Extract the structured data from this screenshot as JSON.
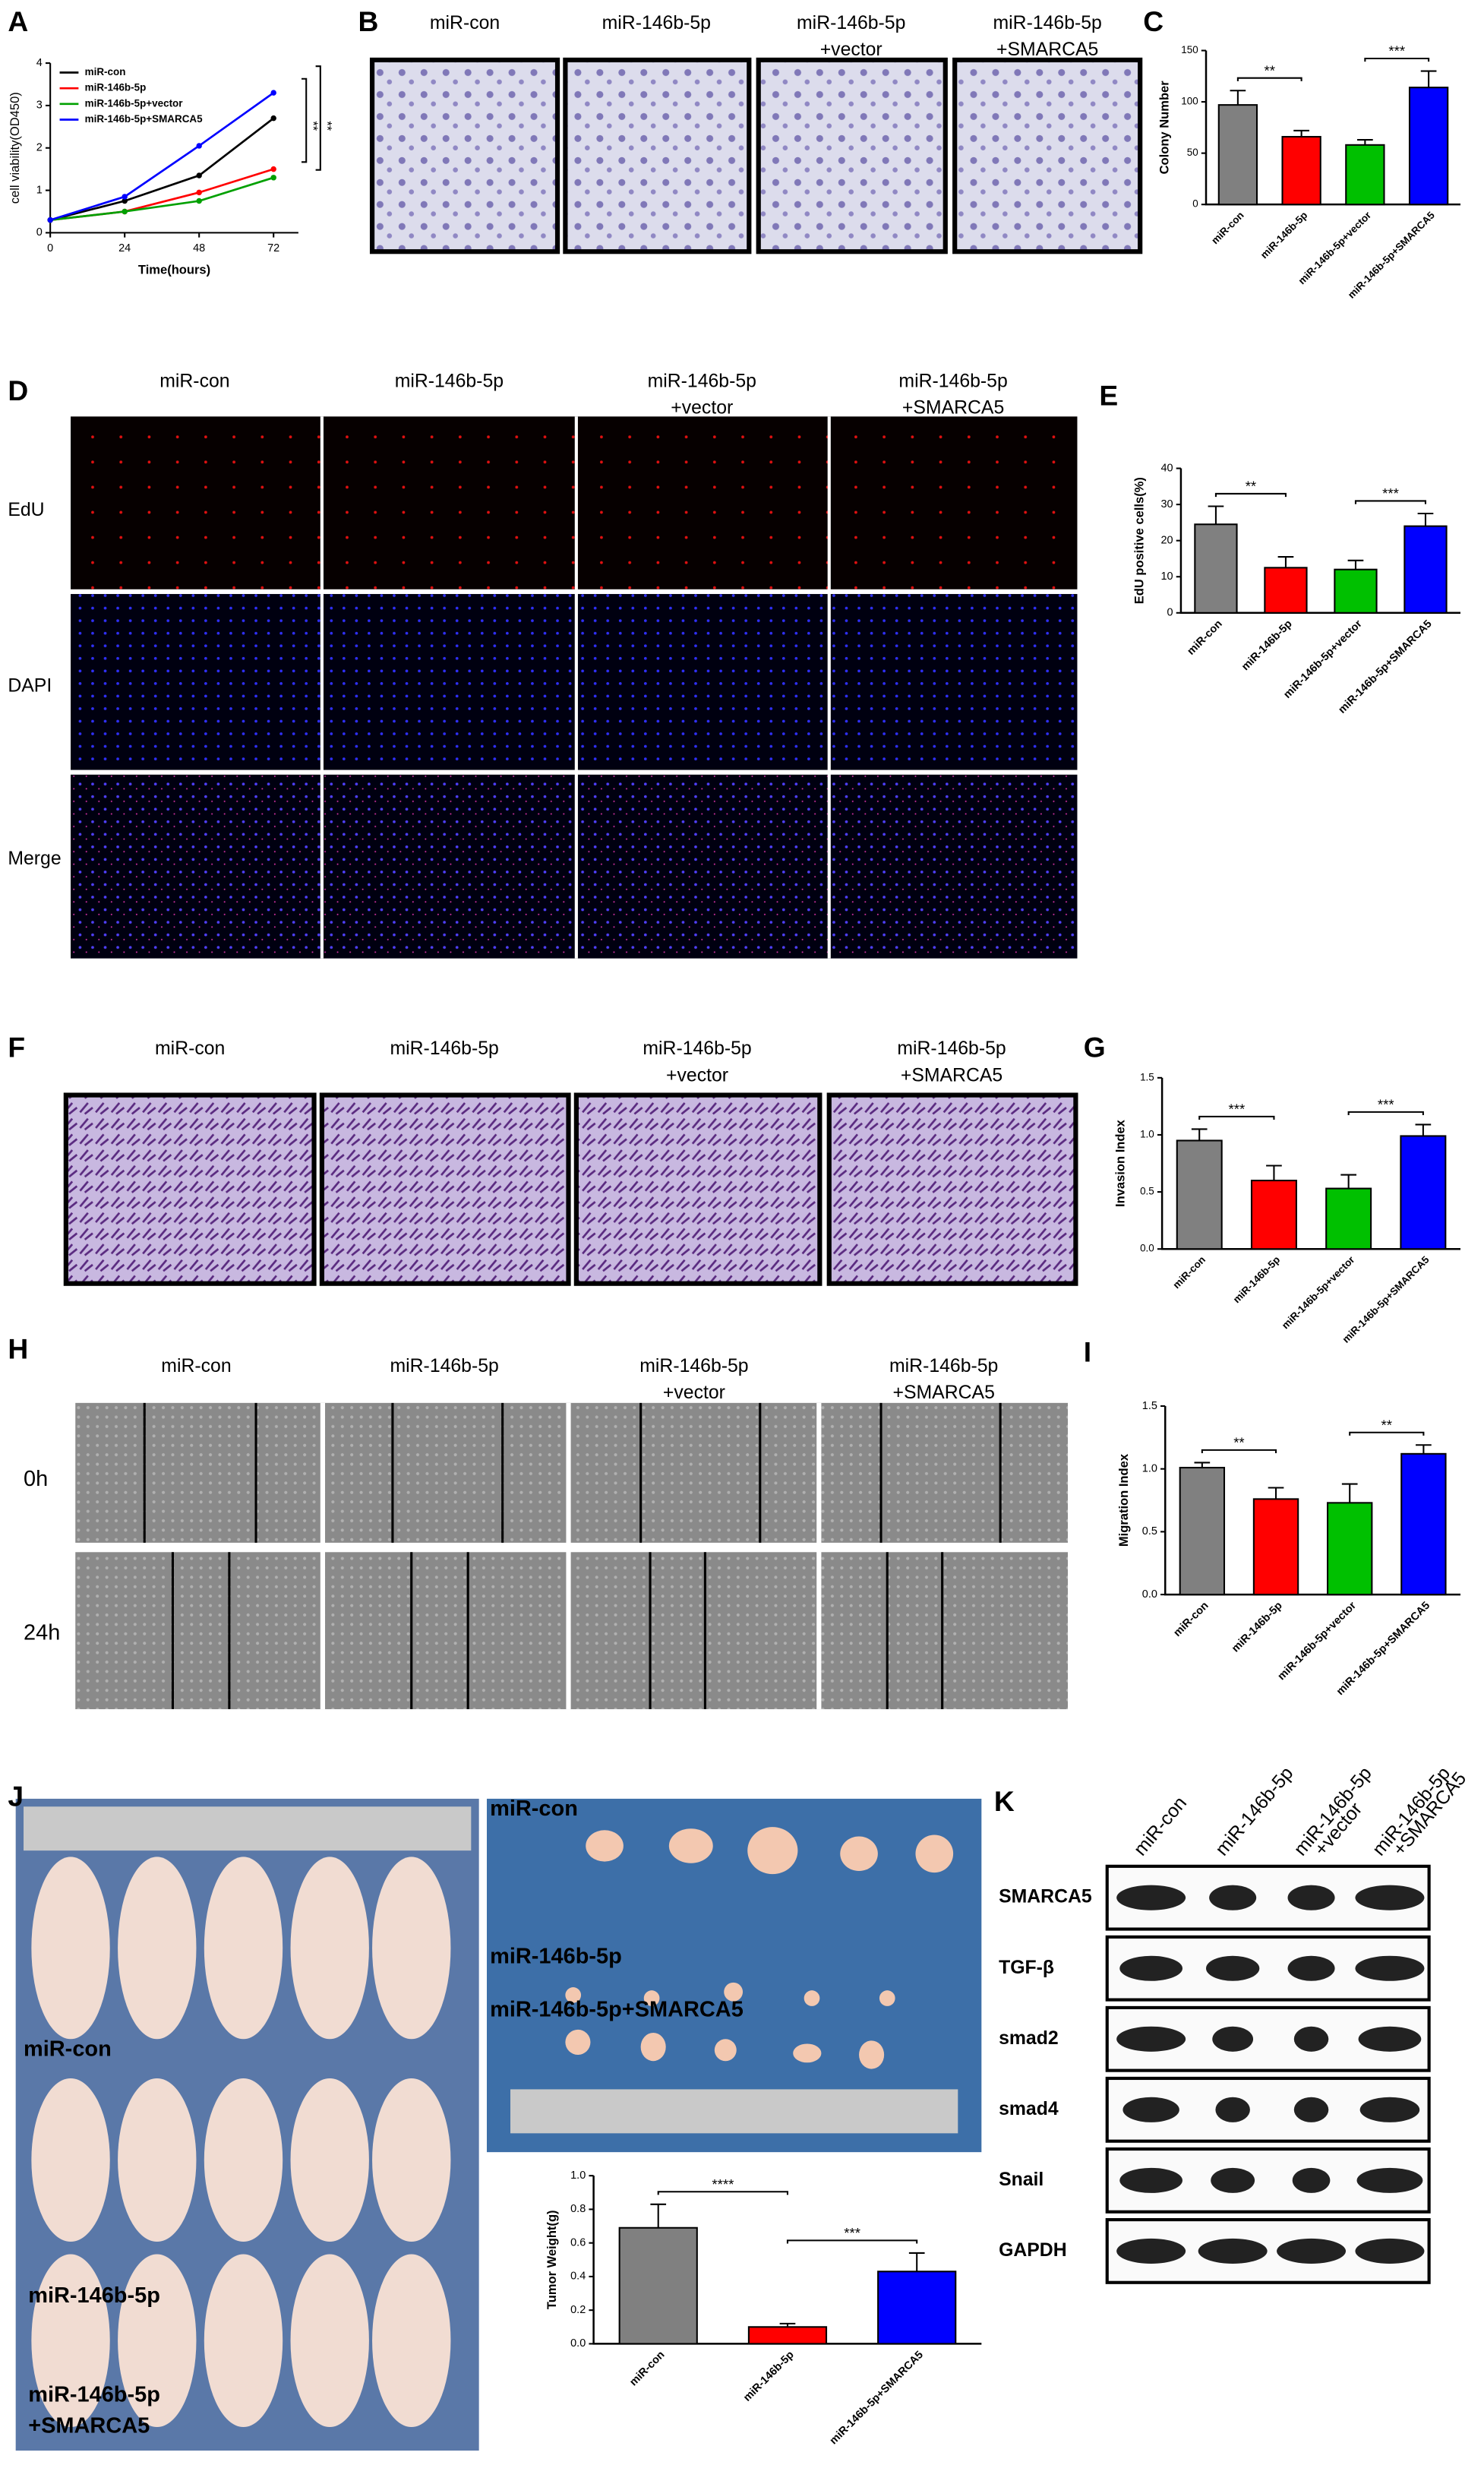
{
  "panel_labels": [
    "A",
    "B",
    "C",
    "D",
    "E",
    "F",
    "G",
    "H",
    "I",
    "J",
    "K"
  ],
  "photo_panels": {
    "B": {
      "columns": [
        [
          "miR-con"
        ],
        [
          "miR-146b-5p"
        ],
        [
          "miR-146b-5p",
          "+vector"
        ],
        [
          "miR-146b-5p",
          "+SMARCA5"
        ]
      ]
    },
    "D": {
      "columns": [
        [
          "miR-con"
        ],
        [
          "miR-146b-5p"
        ],
        [
          "miR-146b-5p",
          "+vector"
        ],
        [
          "miR-146b-5p",
          "+SMARCA5"
        ]
      ],
      "rows": [
        "EdU",
        "DAPI",
        "Merge"
      ]
    },
    "F": {
      "columns": [
        [
          "miR-con"
        ],
        [
          "miR-146b-5p"
        ],
        [
          "miR-146b-5p",
          "+vector"
        ],
        [
          "miR-146b-5p",
          "+SMARCA5"
        ]
      ]
    },
    "H": {
      "columns": [
        [
          "miR-con"
        ],
        [
          "miR-146b-5p"
        ],
        [
          "miR-146b-5p",
          "+vector"
        ],
        [
          "miR-146b-5p",
          "+SMARCA5"
        ]
      ],
      "rows": [
        "0h",
        "24h"
      ]
    },
    "J": {
      "mice_labels": [
        [
          "miR-con"
        ],
        [
          "miR-146b-5p"
        ],
        [
          "miR-146b-5p",
          "+SMARCA5"
        ]
      ],
      "tumor_labels": [
        "miR-con",
        "miR-146b-5p",
        "miR-146b-5p+SMARCA5"
      ]
    },
    "K": {
      "columns": [
        [
          "miR-con"
        ],
        [
          "miR-146b-5p"
        ],
        [
          "miR-146b-5p",
          "+vector"
        ],
        [
          "miR-146b-5p",
          "+SMARCA5"
        ]
      ],
      "rows": [
        "SMARCA5",
        "TGF-β",
        "smad2",
        "smad4",
        "Snail",
        "GAPDH"
      ]
    }
  },
  "chart_data": [
    {
      "type": "line",
      "xlabel": "Time(hours)",
      "ylabel": "cell viability(OD450)",
      "x": [
        0,
        24,
        48,
        72
      ],
      "xlim": [
        0,
        80
      ],
      "xticks": [
        0,
        24,
        48,
        72
      ],
      "ylim": [
        0,
        4
      ],
      "yticks": [
        0,
        1,
        2,
        3,
        4
      ],
      "series": [
        {
          "name": "miR-con",
          "color": "#000000",
          "values": [
            0.3,
            0.75,
            1.35,
            2.7
          ]
        },
        {
          "name": "miR-146b-5p",
          "color": "#ff0000",
          "values": [
            0.3,
            0.5,
            0.95,
            1.5
          ]
        },
        {
          "name": "miR-146b-5p+vector",
          "color": "#00a000",
          "values": [
            0.3,
            0.5,
            0.75,
            1.3
          ]
        },
        {
          "name": "miR-146b-5p+SMARCA5",
          "color": "#0000ff",
          "values": [
            0.3,
            0.85,
            2.05,
            3.3
          ]
        }
      ],
      "annotations": [
        "**",
        "**"
      ],
      "legend": "upper left"
    },
    {
      "type": "bar",
      "ylabel": "Colony Number",
      "categories": [
        "miR-con",
        "miR-146b-5p",
        "miR-146b-5p+vector",
        "miR-146b-5p+SMARCA5"
      ],
      "values": [
        97,
        66,
        58,
        114
      ],
      "errors": [
        14,
        6,
        5,
        16
      ],
      "colors": [
        "#808080",
        "#ff0000",
        "#00c000",
        "#0000ff"
      ],
      "ylim": [
        0,
        150
      ],
      "yticks": [
        0,
        50,
        100,
        150
      ],
      "annotations": [
        "**",
        "***"
      ]
    },
    {
      "type": "bar",
      "ylabel": "EdU positive cells(%)",
      "categories": [
        "miR-con",
        "miR-146b-5p",
        "miR-146b-5p+vector",
        "miR-146b-5p+SMARCA5"
      ],
      "values": [
        24.5,
        12.5,
        12,
        24
      ],
      "errors": [
        5,
        3,
        2.5,
        3.5
      ],
      "colors": [
        "#808080",
        "#ff0000",
        "#00c000",
        "#0000ff"
      ],
      "ylim": [
        0,
        40
      ],
      "yticks": [
        0,
        10,
        20,
        30,
        40
      ],
      "annotations": [
        "**",
        "***"
      ]
    },
    {
      "type": "bar",
      "ylabel": "Invasion Index",
      "categories": [
        "miR-con",
        "miR-146b-5p",
        "miR-146b-5p+vector",
        "miR-146b-5p+SMARCA5"
      ],
      "values": [
        0.95,
        0.6,
        0.53,
        0.99
      ],
      "errors": [
        0.1,
        0.13,
        0.12,
        0.1
      ],
      "colors": [
        "#808080",
        "#ff0000",
        "#00c000",
        "#0000ff"
      ],
      "ylim": [
        0,
        1.5
      ],
      "yticks": [
        {
          "value": 0,
          "label": "0.0"
        },
        0.5,
        {
          "value": 1,
          "label": "1.0"
        },
        1.5
      ],
      "annotations": [
        "***",
        "***"
      ]
    },
    {
      "type": "bar",
      "ylabel": "Migration Index",
      "categories": [
        "miR-con",
        "miR-146b-5p",
        "miR-146b-5p+vector",
        "miR-146b-5p+SMARCA5"
      ],
      "values": [
        1.01,
        0.76,
        0.73,
        1.12
      ],
      "errors": [
        0.04,
        0.09,
        0.15,
        0.07
      ],
      "colors": [
        "#808080",
        "#ff0000",
        "#00c000",
        "#0000ff"
      ],
      "ylim": [
        0,
        1.5
      ],
      "yticks": [
        {
          "value": 0,
          "label": "0.0"
        },
        0.5,
        {
          "value": 1,
          "label": "1.0"
        },
        1.5
      ],
      "annotations": [
        "**",
        "**"
      ]
    },
    {
      "type": "bar",
      "ylabel": "Tumor Weight(g)",
      "categories": [
        "miR-con",
        "miR-146b-5p",
        "miR-146b-5p+SMARCA5"
      ],
      "values": [
        0.69,
        0.1,
        0.43
      ],
      "errors": [
        0.14,
        0.02,
        0.11
      ],
      "colors": [
        "#808080",
        "#ff0000",
        "#0000ff"
      ],
      "ylim": [
        0,
        1
      ],
      "yticks": [
        {
          "value": 0,
          "label": "0.0"
        },
        0.2,
        0.4,
        0.6,
        0.8,
        {
          "value": 1,
          "label": "1.0"
        }
      ],
      "annotations": [
        "****",
        "***"
      ]
    }
  ]
}
